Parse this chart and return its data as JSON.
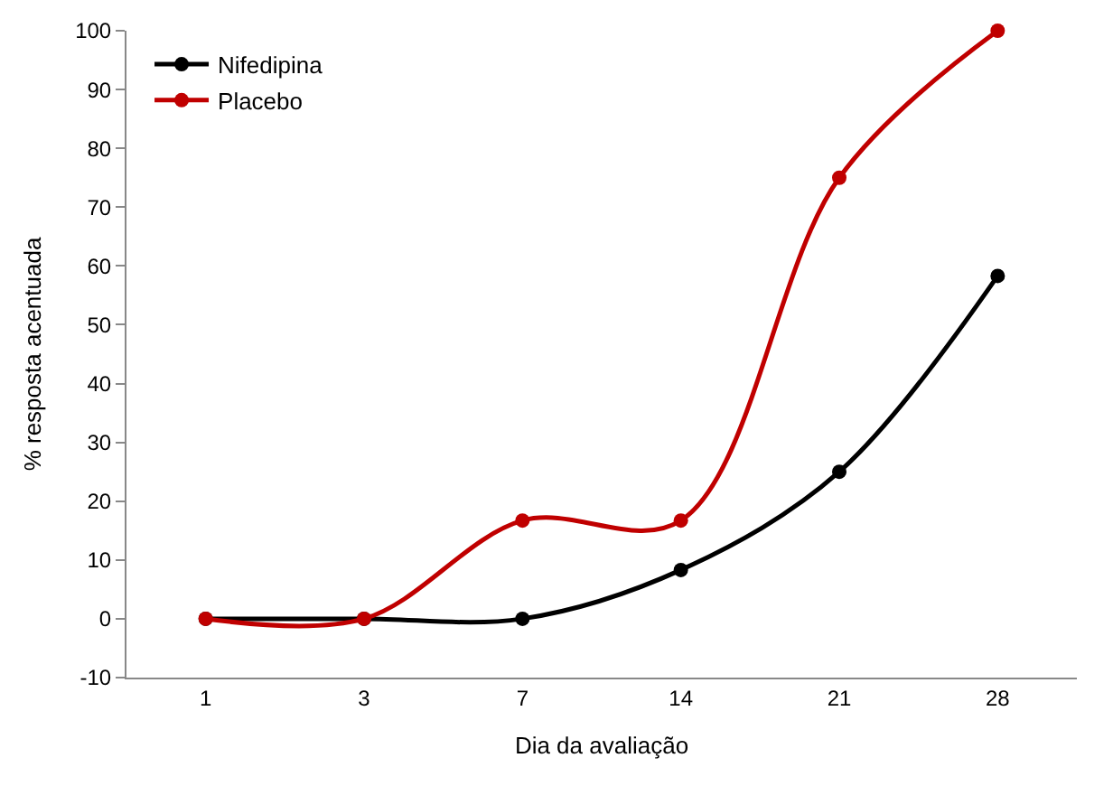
{
  "chart_data": {
    "type": "line",
    "xlabel": "Dia da avaliação",
    "ylabel": "% resposta acentuada",
    "categories": [
      "1",
      "3",
      "7",
      "14",
      "21",
      "28"
    ],
    "series": [
      {
        "name": "Nifedipina",
        "color": "#000000",
        "values": [
          0,
          0,
          0,
          8.3,
          25,
          58.3
        ]
      },
      {
        "name": "Placebo",
        "color": "#c00000",
        "values": [
          0,
          0,
          16.7,
          16.7,
          75,
          100
        ]
      }
    ],
    "ylim": [
      -10,
      100
    ],
    "yticks": [
      -10,
      0,
      10,
      20,
      30,
      40,
      50,
      60,
      70,
      80,
      90,
      100
    ],
    "legend": "top left",
    "marker": "circle",
    "line_style": "solid"
  }
}
